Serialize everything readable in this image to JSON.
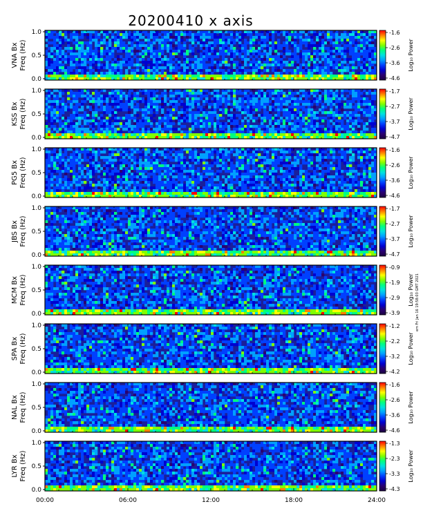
{
  "title": "20200410 x axis",
  "side_note": "em Fri Jan 16 19:58:03 GMT 2021",
  "colorbar_label": "Log₁₀ Power",
  "colors": {
    "colormap": [
      "#1a0040",
      "#2a0070",
      "#0000d0",
      "#0040ff",
      "#00a0ff",
      "#00e0e0",
      "#00ff80",
      "#80ff00",
      "#ffff00",
      "#ff8000",
      "#ff0000"
    ]
  },
  "chart_data": {
    "type": "heatmap",
    "x_ticks": [
      "00:00",
      "06:00",
      "12:00",
      "18:00",
      "24:00"
    ],
    "xlim": [
      0,
      24
    ],
    "y_ticks": [
      "0.0",
      "0.5",
      "1.0"
    ],
    "ylim": [
      0,
      1.0
    ],
    "ylabel": "Freq (Hz)",
    "panels": [
      {
        "station": "VNA Bx",
        "cbar": [
          "-1.6",
          "-2.6",
          "-3.6",
          "-4.6"
        ]
      },
      {
        "station": "KSS Bx",
        "cbar": [
          "-1.7",
          "-2.7",
          "-3.7",
          "-4.7"
        ]
      },
      {
        "station": "PG5 Bx",
        "cbar": [
          "-1.6",
          "-2.6",
          "-3.6",
          "-4.6"
        ]
      },
      {
        "station": "JBS Bx",
        "cbar": [
          "-1.7",
          "-2.7",
          "-3.7",
          "-4.7"
        ]
      },
      {
        "station": "MCM Bx",
        "cbar": [
          "-0.9",
          "-1.9",
          "-2.9",
          "-3.9"
        ]
      },
      {
        "station": "SPA Bx",
        "cbar": [
          "-1.2",
          "-2.2",
          "-3.2",
          "-4.2"
        ]
      },
      {
        "station": "NAL Bx",
        "cbar": [
          "-1.6",
          "-2.6",
          "-3.6",
          "-4.6"
        ]
      },
      {
        "station": "LYR Bx",
        "cbar": [
          "-1.3",
          "-2.3",
          "-3.3",
          "-4.3"
        ]
      }
    ]
  }
}
